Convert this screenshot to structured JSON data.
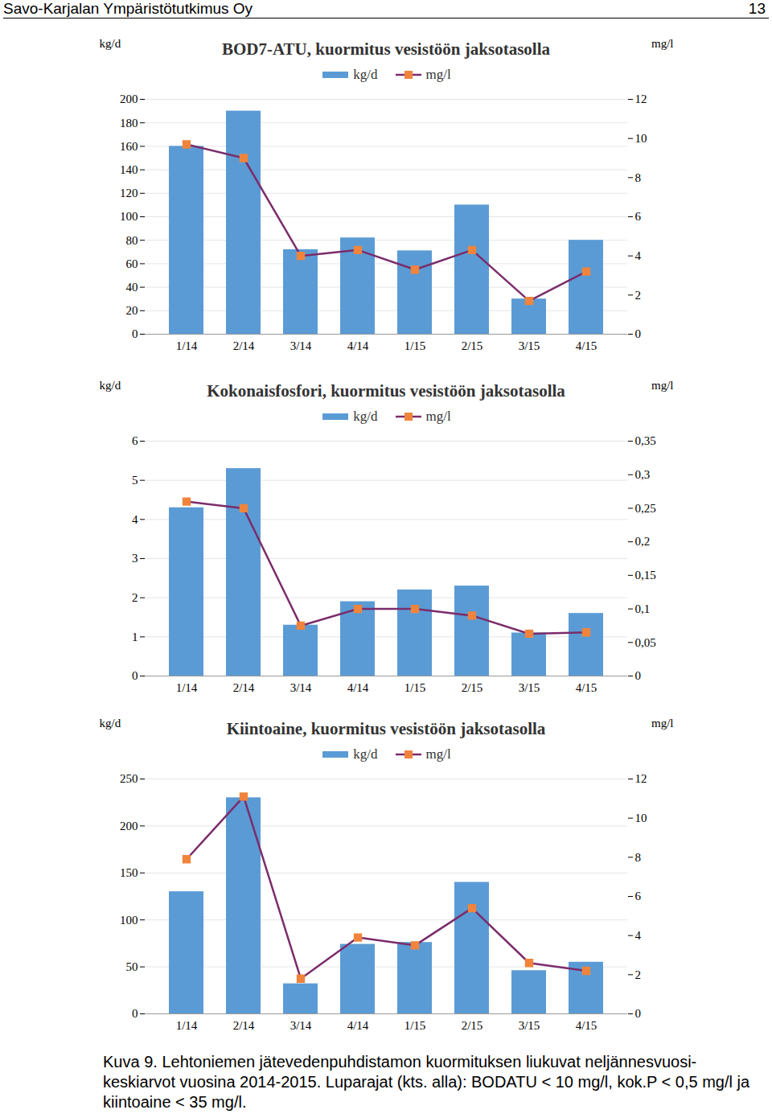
{
  "page_header": {
    "left": "Savo-Karjalan Ympäristötutkimus Oy",
    "page_number": "13"
  },
  "chart_data": [
    {
      "type": "bar",
      "title": "BOD7-ATU, kuormitus vesistöön jaksotasolla",
      "categories": [
        "1/14",
        "2/14",
        "3/14",
        "4/14",
        "1/15",
        "2/15",
        "3/15",
        "4/15"
      ],
      "series": [
        {
          "name": "kg/d",
          "type": "bar",
          "color": "#5b9bd5",
          "values": [
            160,
            190,
            72,
            82,
            71,
            110,
            30,
            80
          ]
        },
        {
          "name": "mg/l",
          "type": "line",
          "color": "#7b2c6b",
          "marker": "square",
          "axis": "y2",
          "values": [
            9.7,
            9.0,
            4.0,
            4.3,
            3.3,
            4.3,
            1.7,
            3.2
          ]
        }
      ],
      "ylabel": "kg/d",
      "y2label": "mg/l",
      "ylim": [
        0,
        200
      ],
      "yticks": [
        0,
        20,
        40,
        60,
        80,
        100,
        120,
        140,
        160,
        180,
        200
      ],
      "y2lim": [
        0,
        12
      ],
      "y2ticks": [
        0,
        2,
        4,
        6,
        8,
        10,
        12
      ],
      "grid": true,
      "legend": "top"
    },
    {
      "type": "bar",
      "title": "Kokonaisfosfori, kuormitus vesistöön jaksotasolla",
      "categories": [
        "1/14",
        "2/14",
        "3/14",
        "4/14",
        "1/15",
        "2/15",
        "3/15",
        "4/15"
      ],
      "series": [
        {
          "name": "kg/d",
          "type": "bar",
          "color": "#5b9bd5",
          "values": [
            4.3,
            5.3,
            1.3,
            1.9,
            2.2,
            2.3,
            1.1,
            1.6
          ]
        },
        {
          "name": "mg/l",
          "type": "line",
          "color": "#7b2c6b",
          "marker": "square",
          "axis": "y2",
          "values": [
            0.26,
            0.25,
            0.075,
            0.1,
            0.1,
            0.09,
            0.063,
            0.065
          ]
        }
      ],
      "ylabel": "kg/d",
      "y2label": "mg/l",
      "ylim": [
        0,
        6
      ],
      "yticks": [
        0,
        1,
        2,
        3,
        4,
        5,
        6
      ],
      "y2lim": [
        0,
        0.35
      ],
      "y2ticks": [
        0,
        {
          "value": 0.05,
          "label": "0,05"
        },
        {
          "value": 0.1,
          "label": "0,1"
        },
        {
          "value": 0.15,
          "label": "0,15"
        },
        {
          "value": 0.2,
          "label": "0,2"
        },
        {
          "value": 0.25,
          "label": "0,25"
        },
        {
          "value": 0.3,
          "label": "0,3"
        },
        {
          "value": 0.35,
          "label": "0,35"
        }
      ],
      "grid": true,
      "legend": "top"
    },
    {
      "type": "bar",
      "title": "Kiintoaine, kuormitus vesistöön jaksotasolla",
      "categories": [
        "1/14",
        "2/14",
        "3/14",
        "4/14",
        "1/15",
        "2/15",
        "3/15",
        "4/15"
      ],
      "series": [
        {
          "name": "kg/d",
          "type": "bar",
          "color": "#5b9bd5",
          "values": [
            130,
            230,
            32,
            74,
            76,
            140,
            46,
            55
          ]
        },
        {
          "name": "mg/l",
          "type": "line",
          "color": "#7b2c6b",
          "marker": "square",
          "axis": "y2",
          "values": [
            7.9,
            11.1,
            1.8,
            3.9,
            3.5,
            5.4,
            2.6,
            2.2
          ]
        }
      ],
      "ylabel": "kg/d",
      "y2label": "mg/l",
      "ylim": [
        0,
        250
      ],
      "yticks": [
        0,
        50,
        100,
        150,
        200,
        250
      ],
      "y2lim": [
        0,
        12
      ],
      "y2ticks": [
        0,
        2,
        4,
        6,
        8,
        10,
        12
      ],
      "grid": true,
      "legend": "top"
    }
  ],
  "caption": "Kuva 9. Lehtoniemen jätevedenpuhdistamon kuormituksen liukuvat neljännesvuosi-keskiarvot vuosina 2014-2015. Luparajat (kts. alla): BODATU < 10 mg/l, kok.P < 0,5 mg/l ja kiintoaine < 35 mg/l."
}
